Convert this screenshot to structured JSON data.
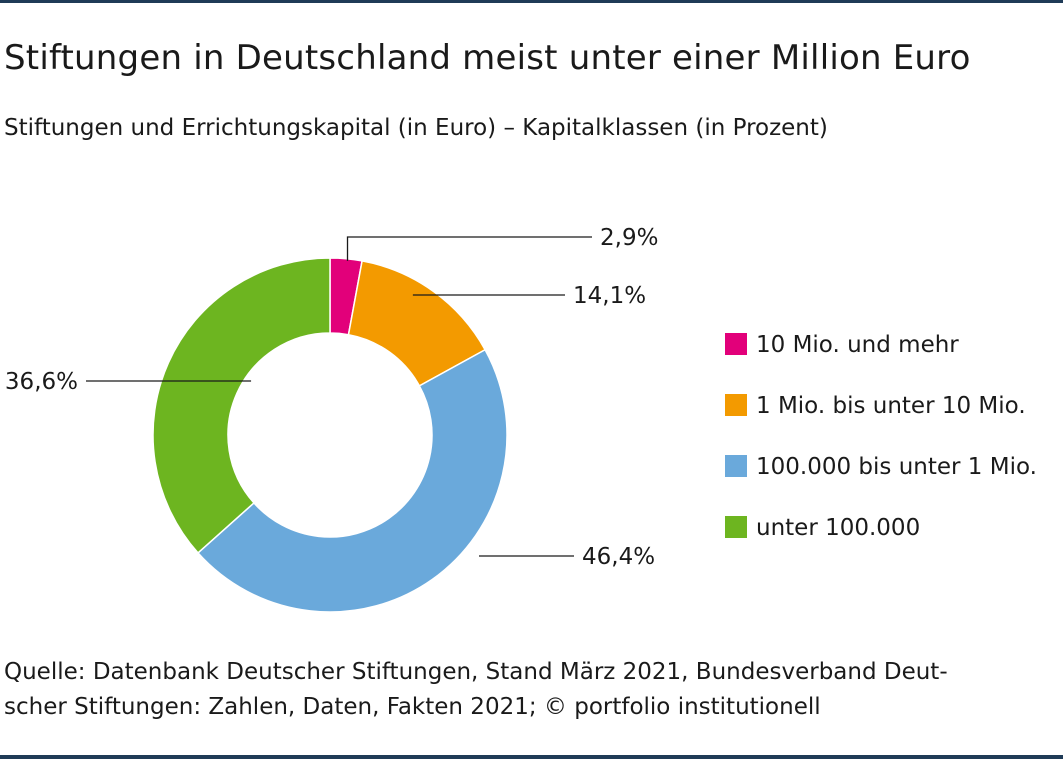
{
  "title": "Stiftungen in Deutschland meist unter einer Million Euro",
  "subtitle": "Stiftungen und Errichtungskapital (in Euro) – Kapitalklassen (in Prozent)",
  "source": {
    "line1": "Quelle: Datenbank Deutscher Stiftungen, Stand März 2021, Bundesverband Deut-",
    "line2": "scher Stiftungen: Zahlen, Daten, Fakten 2021; © portfolio institutionell"
  },
  "chart_data": {
    "type": "pie",
    "donut": true,
    "title": "Stiftungen in Deutschland meist unter einer Million Euro",
    "subtitle": "Stiftungen und Errichtungskapital (in Euro) – Kapitalklassen (in Prozent)",
    "legend_position": "right",
    "categories": [
      "10 Mio. und mehr",
      "1 Mio. bis unter 10 Mio.",
      "100.000 bis unter 1 Mio.",
      "unter 100.000"
    ],
    "values": [
      2.9,
      14.1,
      46.4,
      36.6
    ],
    "labels": [
      "2,9%",
      "14,1%",
      "46,4%",
      "36,6%"
    ],
    "colors": [
      "#e2007a",
      "#f39a00",
      "#6aa9db",
      "#6db520"
    ]
  }
}
